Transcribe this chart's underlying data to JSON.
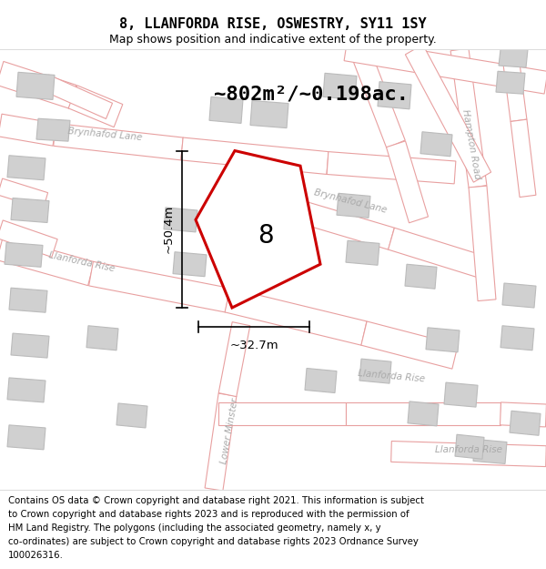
{
  "title": "8, LLANFORDA RISE, OSWESTRY, SY11 1SY",
  "subtitle": "Map shows position and indicative extent of the property.",
  "area_label": "~802m²/~0.198ac.",
  "width_label": "~32.7m",
  "height_label": "~50.4m",
  "plot_number": "8",
  "footer_lines": [
    "Contains OS data © Crown copyright and database right 2021. This information is subject",
    "to Crown copyright and database rights 2023 and is reproduced with the permission of",
    "HM Land Registry. The polygons (including the associated geometry, namely x, y",
    "co-ordinates) are subject to Crown copyright and database rights 2023 Ordnance Survey",
    "100026316."
  ],
  "bg_color": "#ffffff",
  "road_color": "#e8a0a0",
  "plot_stroke": "#cc0000",
  "building_fill": "#d0d0d0",
  "building_edge": "#bbbbbb"
}
